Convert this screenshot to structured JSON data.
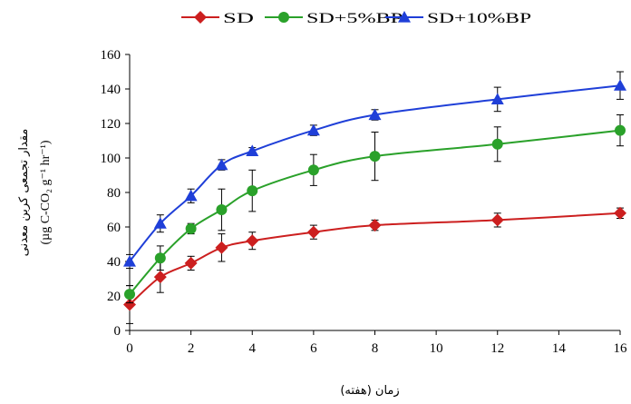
{
  "chart_data": {
    "type": "line",
    "title": "",
    "xlabel": "زمان (هفته)",
    "ylabel": "مقدار تجمعی کربن معدنی",
    "ylabel_units": "(µg C-CO₂ g⁻¹ hr⁻¹)",
    "xlim": [
      0,
      16
    ],
    "ylim": [
      0,
      160
    ],
    "x_ticks": [
      0,
      2,
      4,
      6,
      8,
      10,
      12,
      14,
      16
    ],
    "y_ticks": [
      0,
      20,
      40,
      60,
      80,
      100,
      120,
      140,
      160
    ],
    "grid": false,
    "legend_position": "top-center",
    "series": [
      {
        "name": "SD",
        "color": "#cc1f1f",
        "marker": "diamond",
        "x": [
          0,
          1,
          2,
          3,
          4,
          6,
          8,
          12,
          16
        ],
        "y": [
          15,
          31,
          39,
          48,
          52,
          57,
          61,
          64,
          68
        ],
        "err": [
          11,
          9,
          4,
          8,
          5,
          4,
          3,
          4,
          3
        ]
      },
      {
        "name": "SD+5%BP",
        "color": "#2aa12a",
        "marker": "circle",
        "x": [
          0,
          1,
          2,
          3,
          4,
          6,
          8,
          12,
          16
        ],
        "y": [
          21,
          42,
          59,
          70,
          81,
          93,
          101,
          108,
          116
        ],
        "err": [
          5,
          7,
          3,
          12,
          12,
          9,
          14,
          10,
          9
        ]
      },
      {
        "name": "SD+10%BP",
        "color": "#1f3fd8",
        "marker": "triangle",
        "x": [
          0,
          1,
          2,
          3,
          4,
          6,
          8,
          12,
          16
        ],
        "y": [
          40,
          62,
          78,
          96,
          104,
          116,
          125,
          134,
          142
        ],
        "err": [
          4,
          5,
          4,
          3,
          2,
          3,
          3,
          7,
          8
        ]
      }
    ]
  }
}
